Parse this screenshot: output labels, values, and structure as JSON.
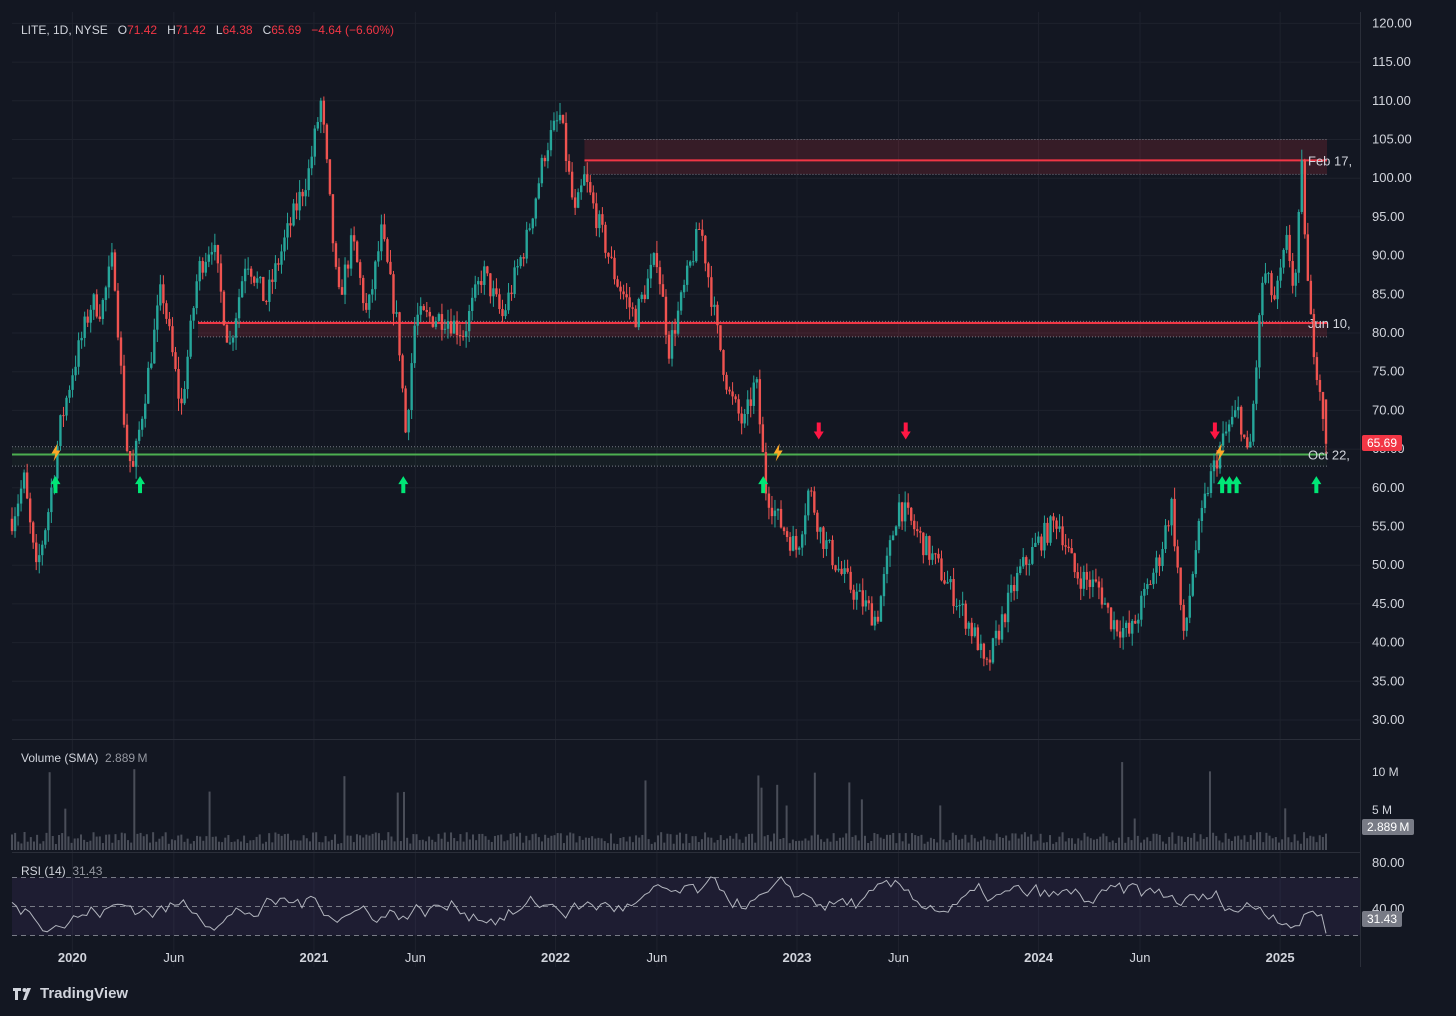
{
  "header": {
    "symbol": "LITE, 1D, NYSE",
    "open_label": "O",
    "open": "71.42",
    "high_label": "H",
    "high": "71.42",
    "low_label": "L",
    "low": "64.38",
    "close_label": "C",
    "close": "65.69",
    "change": "−4.64 (−6.60%)"
  },
  "price_tag": "65.69",
  "volume_legend": {
    "label": "Volume (SMA)",
    "value": "2.889 M",
    "tag": "2.889 M"
  },
  "rsi_legend": {
    "label": "RSI (14)",
    "value": "31.43",
    "tag": "31.43"
  },
  "level_labels": {
    "top": "Feb 17,",
    "mid": "Jun 10,",
    "low": "Oct 22,"
  },
  "footer": {
    "brand": "TradingView"
  },
  "colors": {
    "up": "#26a69a",
    "down": "#ef5350",
    "resistance": "#f23645",
    "support": "#4caf50",
    "signal_up": "#00e676",
    "signal_down": "#ff1744",
    "bolt": "#ffa726",
    "rsi": "#b2b5be",
    "background": "#131722"
  },
  "chart_data": {
    "type": "candlestick",
    "symbol": "LITE",
    "timeframe": "1D",
    "exchange": "NYSE",
    "price_axis": {
      "ticks": [
        30,
        35,
        40,
        45,
        50,
        55,
        60,
        65,
        70,
        75,
        80,
        85,
        90,
        95,
        100,
        105,
        110,
        115,
        120
      ]
    },
    "time_axis": {
      "ticks": [
        "2020",
        "Jun",
        "2021",
        "Jun",
        "2022",
        "Jun",
        "2023",
        "Jun",
        "2024",
        "Jun",
        "2025"
      ]
    },
    "price_path": [
      [
        2019.75,
        56
      ],
      [
        2019.8,
        61
      ],
      [
        2019.85,
        49
      ],
      [
        2019.9,
        57
      ],
      [
        2019.95,
        68
      ],
      [
        2020.0,
        75
      ],
      [
        2020.08,
        84
      ],
      [
        2020.12,
        83
      ],
      [
        2020.17,
        90
      ],
      [
        2020.22,
        66
      ],
      [
        2020.25,
        62
      ],
      [
        2020.3,
        72
      ],
      [
        2020.37,
        86
      ],
      [
        2020.45,
        70
      ],
      [
        2020.52,
        88
      ],
      [
        2020.58,
        92
      ],
      [
        2020.65,
        78
      ],
      [
        2020.72,
        90
      ],
      [
        2020.8,
        84
      ],
      [
        2020.88,
        92
      ],
      [
        2020.98,
        101
      ],
      [
        2021.03,
        110
      ],
      [
        2021.1,
        84
      ],
      [
        2021.16,
        92
      ],
      [
        2021.22,
        82
      ],
      [
        2021.28,
        93
      ],
      [
        2021.35,
        80
      ],
      [
        2021.38,
        67
      ],
      [
        2021.42,
        82
      ],
      [
        2021.55,
        82
      ],
      [
        2021.62,
        80
      ],
      [
        2021.7,
        88
      ],
      [
        2021.78,
        82
      ],
      [
        2021.88,
        92
      ],
      [
        2021.96,
        104
      ],
      [
        2022.02,
        108
      ],
      [
        2022.08,
        95
      ],
      [
        2022.12,
        100
      ],
      [
        2022.18,
        94
      ],
      [
        2022.25,
        87
      ],
      [
        2022.33,
        82
      ],
      [
        2022.42,
        90
      ],
      [
        2022.47,
        78
      ],
      [
        2022.52,
        84
      ],
      [
        2022.6,
        94
      ],
      [
        2022.67,
        80
      ],
      [
        2022.72,
        72
      ],
      [
        2022.78,
        68
      ],
      [
        2022.83,
        74
      ],
      [
        2022.87,
        60
      ],
      [
        2022.92,
        56
      ],
      [
        2023.0,
        52
      ],
      [
        2023.05,
        60
      ],
      [
        2023.1,
        54
      ],
      [
        2023.18,
        49
      ],
      [
        2023.25,
        46
      ],
      [
        2023.33,
        43
      ],
      [
        2023.42,
        58
      ],
      [
        2023.5,
        54
      ],
      [
        2023.58,
        50
      ],
      [
        2023.67,
        45
      ],
      [
        2023.75,
        40
      ],
      [
        2023.78,
        36
      ],
      [
        2023.85,
        43
      ],
      [
        2023.92,
        49
      ],
      [
        2024.0,
        53
      ],
      [
        2024.08,
        56
      ],
      [
        2024.15,
        49
      ],
      [
        2024.25,
        47
      ],
      [
        2024.3,
        43
      ],
      [
        2024.38,
        41
      ],
      [
        2024.45,
        47
      ],
      [
        2024.5,
        51
      ],
      [
        2024.55,
        58
      ],
      [
        2024.58,
        48
      ],
      [
        2024.6,
        40
      ],
      [
        2024.65,
        52
      ],
      [
        2024.7,
        60
      ],
      [
        2024.75,
        65
      ],
      [
        2024.79,
        68
      ],
      [
        2024.83,
        70
      ],
      [
        2024.87,
        63
      ],
      [
        2024.89,
        71
      ],
      [
        2024.93,
        88
      ],
      [
        2024.98,
        84
      ],
      [
        2025.03,
        92
      ],
      [
        2025.06,
        85
      ],
      [
        2025.09,
        101
      ],
      [
        2025.12,
        83
      ],
      [
        2025.15,
        76
      ],
      [
        2025.17,
        72
      ],
      [
        2025.19,
        66
      ]
    ],
    "levels": [
      {
        "type": "resistance",
        "zone": [
          100.5,
          105.0
        ],
        "line": 102.3,
        "label": "Feb 17,"
      },
      {
        "type": "resistance",
        "zone": [
          79.5,
          81.5
        ],
        "line": 81.3,
        "label": "Jun 10,"
      },
      {
        "type": "support",
        "zone": [
          62.8,
          65.3
        ],
        "line": 64.3,
        "label": "Oct 22,"
      }
    ],
    "signals": [
      {
        "type": "bolt",
        "t": 2019.93
      },
      {
        "type": "up",
        "t": 2019.93
      },
      {
        "type": "up",
        "t": 2020.28
      },
      {
        "type": "up",
        "t": 2021.37
      },
      {
        "type": "up",
        "t": 2022.86
      },
      {
        "type": "bolt",
        "t": 2022.92
      },
      {
        "type": "down",
        "t": 2023.09
      },
      {
        "type": "down",
        "t": 2023.45
      },
      {
        "type": "down",
        "t": 2024.73
      },
      {
        "type": "bolt",
        "t": 2024.75
      },
      {
        "type": "up",
        "t": 2024.76
      },
      {
        "type": "up",
        "t": 2024.79
      },
      {
        "type": "up",
        "t": 2024.82
      },
      {
        "type": "up",
        "t": 2025.15
      }
    ],
    "last": {
      "open": 71.42,
      "high": 71.42,
      "low": 64.38,
      "close": 65.69,
      "change": -4.64,
      "change_pct": -6.6
    },
    "volume": {
      "label": "Volume (SMA)",
      "value_m": 2.889,
      "ticks": [
        "5 M",
        "10 M"
      ]
    },
    "rsi": {
      "label": "RSI (14)",
      "value": 31.43,
      "period": 14,
      "upper": 70,
      "middle": 50,
      "lower": 30,
      "ticks": [
        "80.00",
        "40.00"
      ]
    }
  }
}
